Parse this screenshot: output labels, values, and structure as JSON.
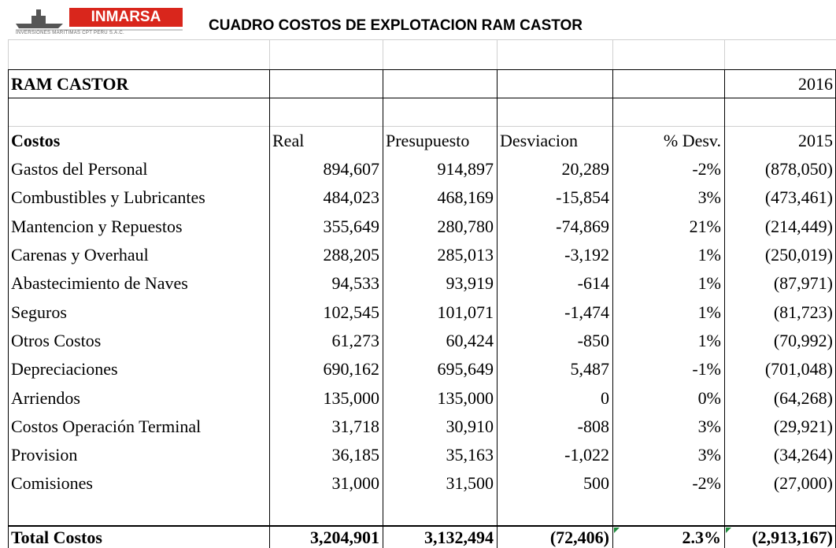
{
  "header": {
    "logo": "INMARSA",
    "logo_subtitle": "INVERSIONES MARITIMAS CPT PERU S.A.C.",
    "title": "CUADRO COSTOS DE EXPLOTACION RAM CASTOR"
  },
  "table": {
    "name": "RAM CASTOR",
    "year": "2016",
    "columns": [
      "Costos",
      "Real",
      "Presupuesto",
      "Desviacion",
      "% Desv.",
      "2015"
    ],
    "rows": [
      [
        "Gastos del Personal",
        "894,607",
        "914,897",
        "20,289",
        "-2%",
        "(878,050)"
      ],
      [
        "Combustibles y Lubricantes",
        "484,023",
        "468,169",
        "-15,854",
        "3%",
        "(473,461)"
      ],
      [
        "Mantencion y Repuestos",
        "355,649",
        "280,780",
        "-74,869",
        "21%",
        "(214,449)"
      ],
      [
        "Carenas y Overhaul",
        "288,205",
        "285,013",
        "-3,192",
        "1%",
        "(250,019)"
      ],
      [
        "Abastecimiento de Naves",
        "94,533",
        "93,919",
        "-614",
        "1%",
        "(87,971)"
      ],
      [
        "Seguros",
        "102,545",
        "101,071",
        "-1,474",
        "1%",
        "(81,723)"
      ],
      [
        "Otros Costos",
        "61,273",
        "60,424",
        "-850",
        "1%",
        "(70,992)"
      ],
      [
        "Depreciaciones",
        "690,162",
        "695,649",
        "5,487",
        "-1%",
        "(701,048)"
      ],
      [
        "Arriendos",
        "135,000",
        "135,000",
        "0",
        "0%",
        "(64,268)"
      ],
      [
        "Costos Operación Terminal",
        "31,718",
        "30,910",
        "-808",
        "3%",
        "(29,921)"
      ],
      [
        "Provision",
        "36,185",
        "35,163",
        "-1,022",
        "3%",
        "(34,264)"
      ],
      [
        "Comisiones",
        "31,000",
        "31,500",
        "500",
        "-2%",
        "(27,000)"
      ]
    ],
    "total": [
      "Total  Costos",
      "3,204,901",
      "3,132,494",
      "(72,406)",
      "2.3%",
      "(2,913,167)"
    ]
  }
}
